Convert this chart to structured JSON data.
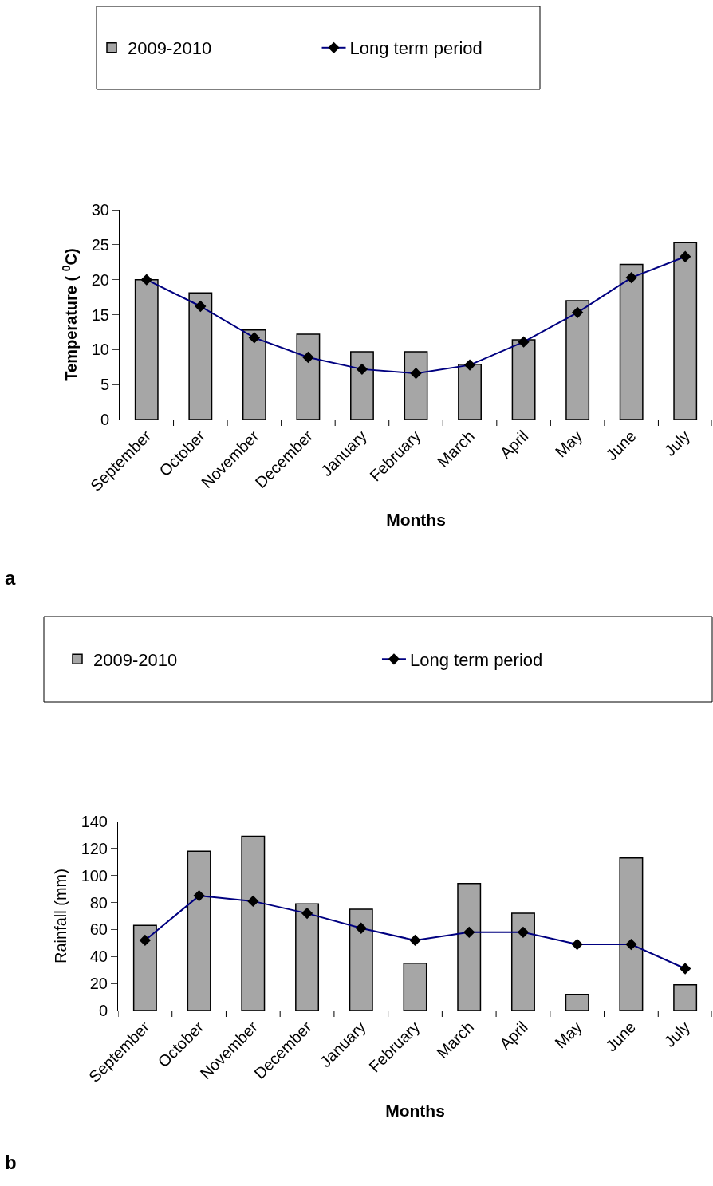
{
  "chart_data": [
    {
      "type": "bar",
      "categories": [
        "September",
        "October",
        "November",
        "December",
        "January",
        "February",
        "March",
        "April",
        "May",
        "June",
        "July"
      ],
      "xlabel": "Months",
      "ylabel": "Temperature ( $^{0}$C)",
      "ylim": [
        0,
        30
      ],
      "yticks": [
        0,
        5,
        10,
        15,
        20,
        25,
        30
      ],
      "legend": "top",
      "marker": "diamond",
      "annotations": [
        "a"
      ],
      "series": [
        {
          "name": "2009-2010",
          "color": "#a6a6a6",
          "values": [
            20,
            18.1,
            12.8,
            12.2,
            9.7,
            9.7,
            7.9,
            11.4,
            17,
            22.2,
            25.3
          ]
        },
        {
          "name": "Long term period",
          "type": "line",
          "color": "#000080",
          "values": [
            20,
            16.2,
            11.7,
            8.9,
            7.2,
            6.6,
            7.8,
            11.1,
            15.3,
            20.3,
            23.3
          ]
        }
      ]
    },
    {
      "type": "bar",
      "categories": [
        "September",
        "October",
        "November",
        "December",
        "January",
        "February",
        "March",
        "April",
        "May",
        "June",
        "July"
      ],
      "xlabel": "Months",
      "ylabel": "Rainfall (mm)",
      "ylim": [
        0,
        140
      ],
      "yticks": [
        0,
        20,
        40,
        60,
        80,
        100,
        120,
        140
      ],
      "legend": "top",
      "marker": "diamond",
      "annotations": [
        "b"
      ],
      "series": [
        {
          "name": "2009-2010",
          "color": "#a6a6a6",
          "values": [
            63,
            118,
            129,
            79,
            75,
            35,
            94,
            72,
            12,
            113,
            19
          ]
        },
        {
          "name": "Long term period",
          "type": "line",
          "color": "#000080",
          "values": [
            52,
            85,
            81,
            72,
            61,
            52,
            58,
            58,
            49,
            49,
            31
          ]
        }
      ]
    }
  ]
}
